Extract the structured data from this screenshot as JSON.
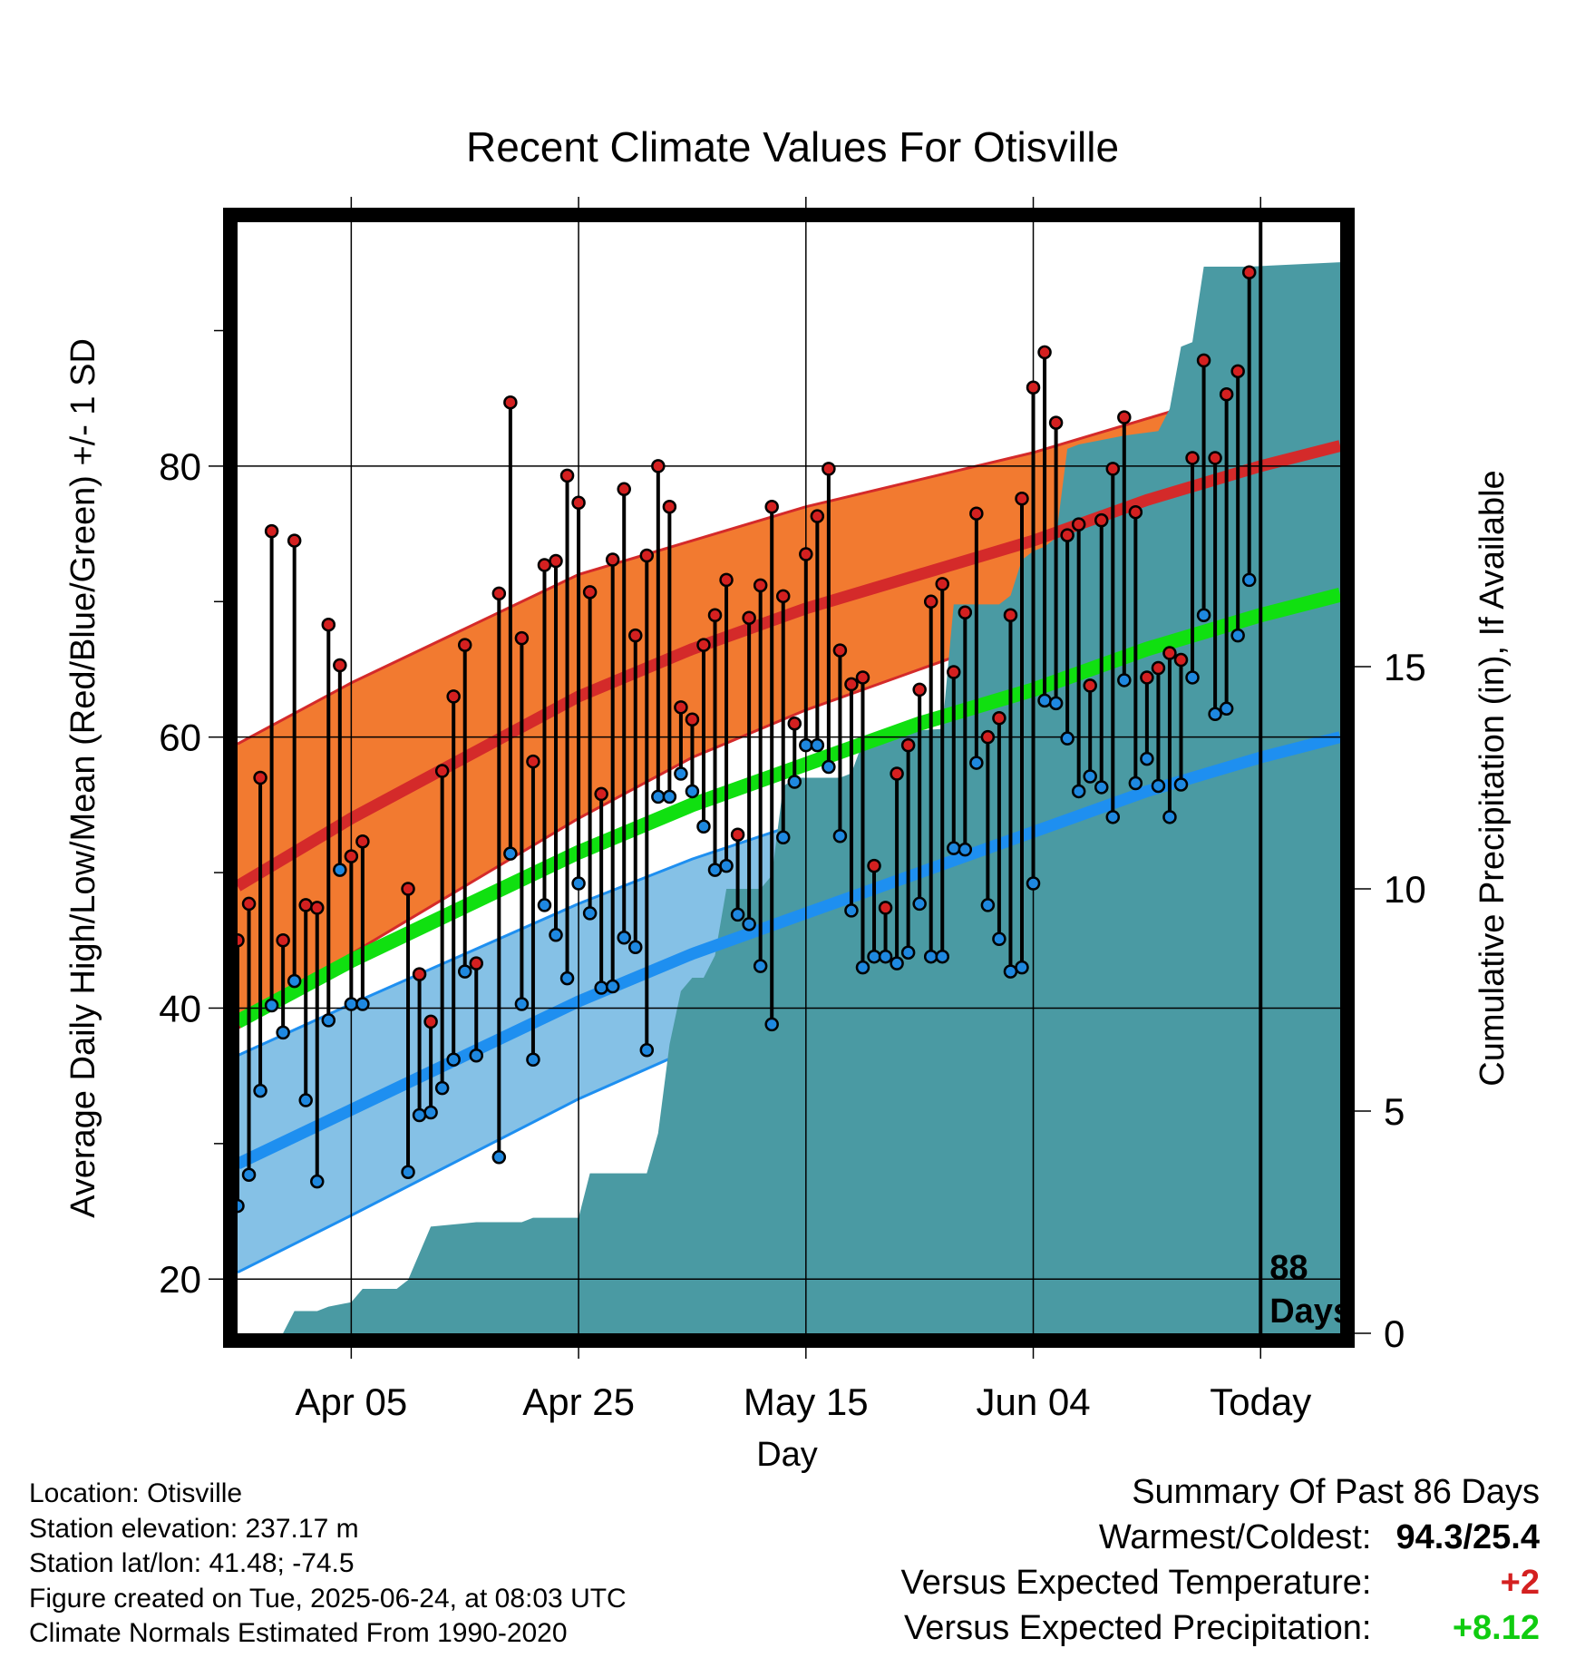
{
  "colors": {
    "high_band": "#f27a30",
    "high_mean": "#d42a2a",
    "high_band_edge": "#d42a2a",
    "low_band": "#85c1e6",
    "low_mean": "#1e8ff0",
    "low_band_edge": "#1e8ff0",
    "mean_line": "#10e010",
    "precip": "#4a9aa3",
    "high_dot": "#d42020",
    "low_dot": "#1e88e0",
    "positive_temp": "#d42020",
    "positive_precip": "#10cc10"
  },
  "chart_data": {
    "type": "line",
    "title": "Recent Climate Values For Otisville",
    "xlabel": "Day",
    "ylabel": "Average Daily High/Low/Mean (Red/Blue/Green) +/- 1 SD",
    "y2label": "Cumulative Precipitation (in), If Available",
    "x_range_days": [
      -88,
      9
    ],
    "ylim": [
      16,
      98
    ],
    "y2lim": [
      0,
      25
    ],
    "x_ticks": [
      {
        "day": -78,
        "label": "Apr 05"
      },
      {
        "day": -58,
        "label": "Apr 25"
      },
      {
        "day": -38,
        "label": "May 15"
      },
      {
        "day": -18,
        "label": "Jun 04"
      },
      {
        "day": 2,
        "label": "Today"
      }
    ],
    "y_ticks": [
      20,
      40,
      60,
      80
    ],
    "y_minor_ticks": [
      30,
      50,
      70,
      90
    ],
    "y2_ticks": [
      0,
      5,
      10,
      15
    ],
    "grid": true,
    "today_day": 2,
    "today_label": "88",
    "today_label2": "Days",
    "normal_high": [
      [
        -88,
        49
      ],
      [
        -78,
        54
      ],
      [
        -68,
        58.5
      ],
      [
        -58,
        63
      ],
      [
        -48,
        66.5
      ],
      [
        -38,
        69.5
      ],
      [
        -28,
        72
      ],
      [
        -18,
        74.5
      ],
      [
        -8,
        77.5
      ],
      [
        2,
        80
      ],
      [
        9,
        81.5
      ]
    ],
    "normal_high_sd": [
      [
        -88,
        10.5
      ],
      [
        -78,
        10
      ],
      [
        -68,
        9.5
      ],
      [
        -58,
        9
      ],
      [
        -48,
        8
      ],
      [
        -38,
        7.5
      ],
      [
        -28,
        7
      ],
      [
        -18,
        6.5
      ],
      [
        -8,
        6
      ],
      [
        2,
        6
      ],
      [
        9,
        6
      ]
    ],
    "normal_low": [
      [
        -88,
        28.5
      ],
      [
        -78,
        32.5
      ],
      [
        -68,
        36.5
      ],
      [
        -58,
        40.5
      ],
      [
        -48,
        44
      ],
      [
        -38,
        47
      ],
      [
        -28,
        50
      ],
      [
        -18,
        53
      ],
      [
        -8,
        56
      ],
      [
        2,
        58.5
      ],
      [
        9,
        60
      ]
    ],
    "normal_low_sd": [
      [
        -88,
        8
      ],
      [
        -78,
        7.8
      ],
      [
        -68,
        7.5
      ],
      [
        -58,
        7.2
      ],
      [
        -48,
        7
      ],
      [
        -38,
        6.8
      ],
      [
        -28,
        6.5
      ],
      [
        -18,
        6.2
      ],
      [
        -8,
        5.8
      ],
      [
        2,
        5.5
      ],
      [
        9,
        5.5
      ]
    ],
    "normal_mean": [
      [
        -88,
        39
      ],
      [
        -78,
        43.5
      ],
      [
        -68,
        47.5
      ],
      [
        -58,
        51.5
      ],
      [
        -48,
        55
      ],
      [
        -38,
        58
      ],
      [
        -28,
        61
      ],
      [
        -18,
        63.5
      ],
      [
        -8,
        66.5
      ],
      [
        2,
        69
      ],
      [
        9,
        70.5
      ]
    ],
    "daily": [
      {
        "day": -88,
        "high": 45,
        "low": 25.4
      },
      {
        "day": -87,
        "high": 47.7,
        "low": 27.7
      },
      {
        "day": -86,
        "high": 57,
        "low": 33.9
      },
      {
        "day": -85,
        "high": 75.2,
        "low": 40.2
      },
      {
        "day": -84,
        "high": 45,
        "low": 38.2
      },
      {
        "day": -83,
        "high": 74.5,
        "low": 42
      },
      {
        "day": -82,
        "high": 47.6,
        "low": 33.2
      },
      {
        "day": -81,
        "high": 47.4,
        "low": 27.2
      },
      {
        "day": -80,
        "high": 68.3,
        "low": 39.1
      },
      {
        "day": -79,
        "high": 65.3,
        "low": 50.2
      },
      {
        "day": -78,
        "high": 51.2,
        "low": 40.3
      },
      {
        "day": -77,
        "high": 52.3,
        "low": 40.3
      },
      {
        "day": -73,
        "high": 48.8,
        "low": 27.9
      },
      {
        "day": -72,
        "high": 42.5,
        "low": 32.1
      },
      {
        "day": -71,
        "high": 39,
        "low": 32.3
      },
      {
        "day": -70,
        "high": 57.5,
        "low": 34.1
      },
      {
        "day": -69,
        "high": 63,
        "low": 36.2
      },
      {
        "day": -68,
        "high": 66.8,
        "low": 42.7
      },
      {
        "day": -67,
        "high": 43.3,
        "low": 36.5
      },
      {
        "day": -65,
        "high": 70.6,
        "low": 29
      },
      {
        "day": -64,
        "high": 84.7,
        "low": 51.4
      },
      {
        "day": -63,
        "high": 67.3,
        "low": 40.3
      },
      {
        "day": -62,
        "high": 58.2,
        "low": 36.2
      },
      {
        "day": -61,
        "high": 72.7,
        "low": 47.6
      },
      {
        "day": -60,
        "high": 73,
        "low": 45.4
      },
      {
        "day": -59,
        "high": 79.3,
        "low": 42.2
      },
      {
        "day": -58,
        "high": 77.3,
        "low": 49.2
      },
      {
        "day": -57,
        "high": 70.7,
        "low": 47
      },
      {
        "day": -56,
        "high": 55.8,
        "low": 41.5
      },
      {
        "day": -55,
        "high": 73.1,
        "low": 41.6
      },
      {
        "day": -54,
        "high": 78.3,
        "low": 45.2
      },
      {
        "day": -53,
        "high": 67.5,
        "low": 44.5
      },
      {
        "day": -52,
        "high": 73.4,
        "low": 36.9
      },
      {
        "day": -51,
        "high": 80,
        "low": 55.6
      },
      {
        "day": -50,
        "high": 77,
        "low": 55.6
      },
      {
        "day": -49,
        "high": 62.2,
        "low": 57.3
      },
      {
        "day": -48,
        "high": 61.3,
        "low": 56
      },
      {
        "day": -47,
        "high": 66.8,
        "low": 53.4
      },
      {
        "day": -46,
        "high": 69,
        "low": 50.2
      },
      {
        "day": -45,
        "high": 71.6,
        "low": 50.5
      },
      {
        "day": -44,
        "high": 52.8,
        "low": 46.9
      },
      {
        "day": -43,
        "high": 68.8,
        "low": 46.2
      },
      {
        "day": -42,
        "high": 71.2,
        "low": 43.1
      },
      {
        "day": -41,
        "high": 77,
        "low": 38.8
      },
      {
        "day": -40,
        "high": 70.4,
        "low": 52.6
      },
      {
        "day": -39,
        "high": 61,
        "low": 56.7
      },
      {
        "day": -38,
        "high": 73.5,
        "low": 59.4
      },
      {
        "day": -37,
        "high": 76.3,
        "low": 59.4
      },
      {
        "day": -36,
        "high": 79.8,
        "low": 57.8
      },
      {
        "day": -35,
        "high": 66.4,
        "low": 52.7
      },
      {
        "day": -34,
        "high": 63.9,
        "low": 47.2
      },
      {
        "day": -33,
        "high": 64.4,
        "low": 43
      },
      {
        "day": -32,
        "high": 50.5,
        "low": 43.8
      },
      {
        "day": -31,
        "high": 47.4,
        "low": 43.8
      },
      {
        "day": -30,
        "high": 57.3,
        "low": 43.3
      },
      {
        "day": -29,
        "high": 59.4,
        "low": 44.1
      },
      {
        "day": -28,
        "high": 63.5,
        "low": 47.7
      },
      {
        "day": -27,
        "high": 70,
        "low": 43.8
      },
      {
        "day": -26,
        "high": 71.3,
        "low": 43.8
      },
      {
        "day": -25,
        "high": 64.8,
        "low": 51.8
      },
      {
        "day": -24,
        "high": 69.2,
        "low": 51.7
      },
      {
        "day": -23,
        "high": 76.5,
        "low": 58.1
      },
      {
        "day": -22,
        "high": 60,
        "low": 47.6
      },
      {
        "day": -21,
        "high": 61.4,
        "low": 45.1
      },
      {
        "day": -20,
        "high": 69,
        "low": 42.7
      },
      {
        "day": -19,
        "high": 77.6,
        "low": 43
      },
      {
        "day": -18,
        "high": 85.8,
        "low": 49.2
      },
      {
        "day": -17,
        "high": 88.4,
        "low": 62.7
      },
      {
        "day": -16,
        "high": 83.2,
        "low": 62.5
      },
      {
        "day": -15,
        "high": 74.9,
        "low": 59.9
      },
      {
        "day": -14,
        "high": 75.7,
        "low": 56
      },
      {
        "day": -13,
        "high": 63.8,
        "low": 57.1
      },
      {
        "day": -12,
        "high": 76,
        "low": 56.3
      },
      {
        "day": -11,
        "high": 79.8,
        "low": 54.1
      },
      {
        "day": -10,
        "high": 83.6,
        "low": 64.2
      },
      {
        "day": -9,
        "high": 76.6,
        "low": 56.6
      },
      {
        "day": -8,
        "high": 64.4,
        "low": 58.4
      },
      {
        "day": -7,
        "high": 65.1,
        "low": 56.4
      },
      {
        "day": -6,
        "high": 66.2,
        "low": 54.1
      },
      {
        "day": -5,
        "high": 65.7,
        "low": 56.5
      },
      {
        "day": -4,
        "high": 80.6,
        "low": 64.4
      },
      {
        "day": -3,
        "high": 87.8,
        "low": 69
      },
      {
        "day": -2,
        "high": 80.6,
        "low": 61.7
      },
      {
        "day": -1,
        "high": 85.3,
        "low": 62.1
      },
      {
        "day": 0,
        "high": 87,
        "low": 67.5
      },
      {
        "day": 1,
        "high": 94.3,
        "low": 71.6
      }
    ],
    "cumulative_precip": [
      [
        -88,
        0
      ],
      [
        -84,
        0
      ],
      [
        -83,
        0.5
      ],
      [
        -81,
        0.5
      ],
      [
        -80,
        0.6
      ],
      [
        -78,
        0.7
      ],
      [
        -77,
        1
      ],
      [
        -74,
        1
      ],
      [
        -73,
        1.2
      ],
      [
        -72,
        1.8
      ],
      [
        -71,
        2.4
      ],
      [
        -67,
        2.5
      ],
      [
        -63,
        2.5
      ],
      [
        -62,
        2.6
      ],
      [
        -58,
        2.6
      ],
      [
        -57,
        3.6
      ],
      [
        -52,
        3.6
      ],
      [
        -51,
        4.5
      ],
      [
        -50,
        6.5
      ],
      [
        -49,
        7.7
      ],
      [
        -48,
        8.0
      ],
      [
        -47,
        8.0
      ],
      [
        -46,
        8.5
      ],
      [
        -45,
        10.0
      ],
      [
        -43,
        10.0
      ],
      [
        -42,
        10.0
      ],
      [
        -41,
        10.3
      ],
      [
        -40,
        12.3
      ],
      [
        -39,
        12.5
      ],
      [
        -35,
        12.5
      ],
      [
        -34,
        12.6
      ],
      [
        -33,
        13.3
      ],
      [
        -32,
        13.5
      ],
      [
        -26,
        13.6
      ],
      [
        -25,
        16.4
      ],
      [
        -21,
        16.4
      ],
      [
        -20,
        16.6
      ],
      [
        -19,
        17.4
      ],
      [
        -18,
        17.6
      ],
      [
        -17,
        17.7
      ],
      [
        -16,
        17.9
      ],
      [
        -15,
        19.9
      ],
      [
        -14,
        20.0
      ],
      [
        -10,
        20.2
      ],
      [
        -7,
        20.3
      ],
      [
        -6,
        20.8
      ],
      [
        -5,
        22.2
      ],
      [
        -4,
        22.3
      ],
      [
        -3,
        24.0
      ],
      [
        1,
        24.0
      ],
      [
        9,
        24.1
      ]
    ]
  },
  "info": {
    "location": "Location: Otisville",
    "elevation": "Station elevation: 237.17 m",
    "latlon": "Station lat/lon: 41.48; -74.5",
    "created": "Figure created on Tue, 2025-06-24, at 08:03 UTC",
    "normals": "Climate Normals Estimated From 1990-2020"
  },
  "summary": {
    "heading": "Summary Of Past 86 Days",
    "warmest_label": "Warmest/Coldest:",
    "warmest_value": "94.3/25.4",
    "temp_label": "Versus Expected Temperature:",
    "temp_value": "+2",
    "precip_label": "Versus Expected Precipitation:",
    "precip_value": "+8.12"
  }
}
